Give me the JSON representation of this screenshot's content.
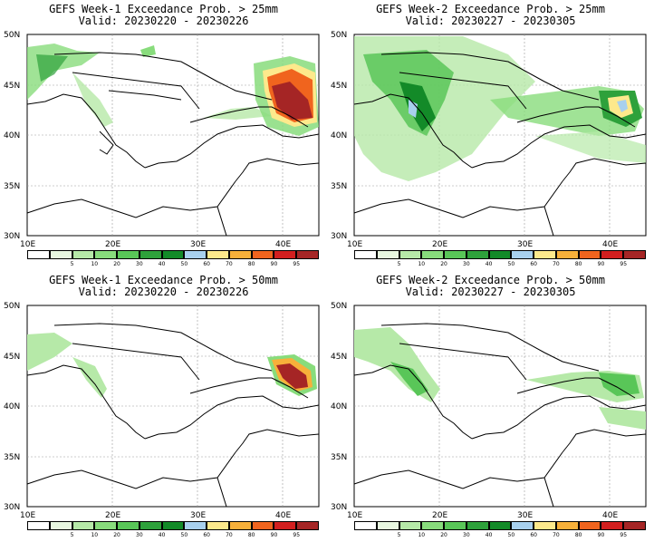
{
  "panels": [
    {
      "title": "GEFS Week-1 Exceedance Prob. > 25mm",
      "valid": "Valid: 20230220 - 20230226"
    },
    {
      "title": "GEFS Week-2 Exceedance Prob. > 25mm",
      "valid": "Valid: 20230227 - 20230305"
    },
    {
      "title": "GEFS Week-1 Exceedance Prob. > 50mm",
      "valid": "Valid: 20230220 - 20230226"
    },
    {
      "title": "GEFS Week-2 Exceedance Prob. > 50mm",
      "valid": "Valid: 20230227 - 20230305"
    }
  ],
  "lat_labels": [
    "50N",
    "45N",
    "40N",
    "35N",
    "30N"
  ],
  "lon_labels": [
    "10E",
    "20E",
    "30E",
    "40E"
  ],
  "colorbar": {
    "labels": [
      "5",
      "10",
      "20",
      "30",
      "40",
      "50",
      "60",
      "70",
      "80",
      "90",
      "95"
    ],
    "colors": [
      "#ffffff",
      "#e8f7e0",
      "#b6e9a8",
      "#88dc7c",
      "#59c658",
      "#2ea13b",
      "#138a28",
      "#a8d0ee",
      "#fde98c",
      "#f7b03a",
      "#f0641e",
      "#d21f1f",
      "#a52525"
    ]
  }
}
